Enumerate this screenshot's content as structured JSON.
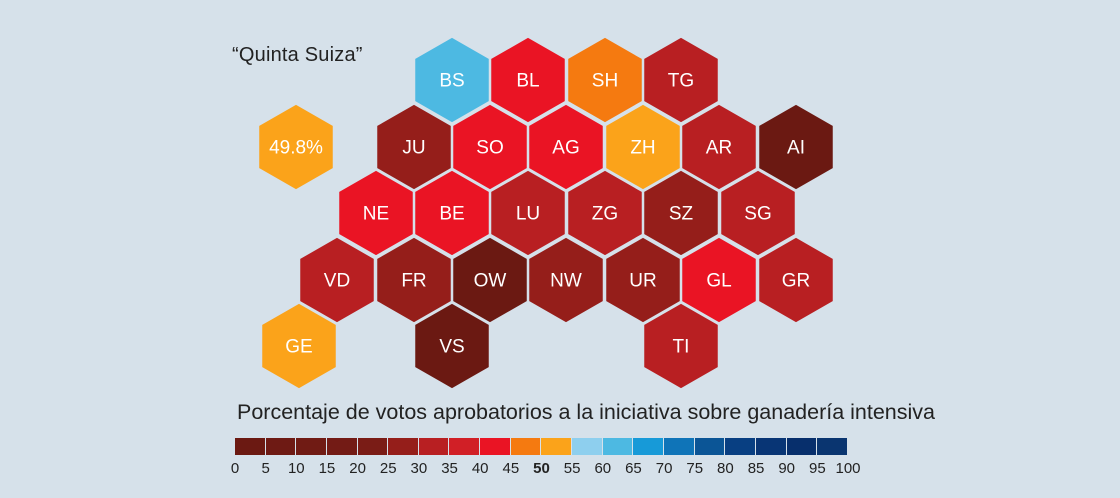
{
  "subtitle": "“Quinta Suiza”",
  "legend": {
    "title": "Porcentaje de votos aprobatorios a la iniciativa sobre ganadería intensiva",
    "ticks": [
      "0",
      "5",
      "10",
      "15",
      "20",
      "25",
      "30",
      "35",
      "40",
      "45",
      "50",
      "55",
      "60",
      "65",
      "70",
      "75",
      "80",
      "85",
      "90",
      "95",
      "100"
    ],
    "bold_tick": "50",
    "colors": [
      "#6b1912",
      "#6e1a14",
      "#701b14",
      "#731b15",
      "#7a1c16",
      "#951e1a",
      "#b81f22",
      "#d11f26",
      "#ea1424",
      "#f57a10",
      "#fba31a",
      "#8ecfee",
      "#4db9e2",
      "#179ad8",
      "#0f74b8",
      "#0b5596",
      "#083f82",
      "#083575",
      "#072f6c",
      "#0a3570"
    ]
  },
  "regions": [
    {
      "code": "BS",
      "color": "#4db9e2"
    },
    {
      "code": "BL",
      "color": "#ea1424"
    },
    {
      "code": "SH",
      "color": "#f57a10"
    },
    {
      "code": "TG",
      "color": "#b81f22"
    },
    {
      "code": "JU",
      "color": "#951e1a"
    },
    {
      "code": "SO",
      "color": "#ea1424"
    },
    {
      "code": "AG",
      "color": "#ea1424"
    },
    {
      "code": "ZH",
      "color": "#fba31a"
    },
    {
      "code": "AR",
      "color": "#b81f22"
    },
    {
      "code": "AI",
      "color": "#6b1912"
    },
    {
      "code": "NE",
      "color": "#ea1424"
    },
    {
      "code": "BE",
      "color": "#ea1424"
    },
    {
      "code": "LU",
      "color": "#b81f22"
    },
    {
      "code": "ZG",
      "color": "#b81f22"
    },
    {
      "code": "SZ",
      "color": "#951e1a"
    },
    {
      "code": "SG",
      "color": "#b81f22"
    },
    {
      "code": "VD",
      "color": "#b81f22"
    },
    {
      "code": "FR",
      "color": "#951e1a"
    },
    {
      "code": "OW",
      "color": "#6b1912"
    },
    {
      "code": "NW",
      "color": "#951e1a"
    },
    {
      "code": "UR",
      "color": "#951e1a"
    },
    {
      "code": "GL",
      "color": "#ea1424"
    },
    {
      "code": "GR",
      "color": "#b81f22"
    },
    {
      "code": "GE",
      "color": "#fba31a"
    },
    {
      "code": "VS",
      "color": "#6b1912"
    },
    {
      "code": "TI",
      "color": "#b81f22"
    },
    {
      "code": "49.8%",
      "color": "#fba31a"
    }
  ]
}
